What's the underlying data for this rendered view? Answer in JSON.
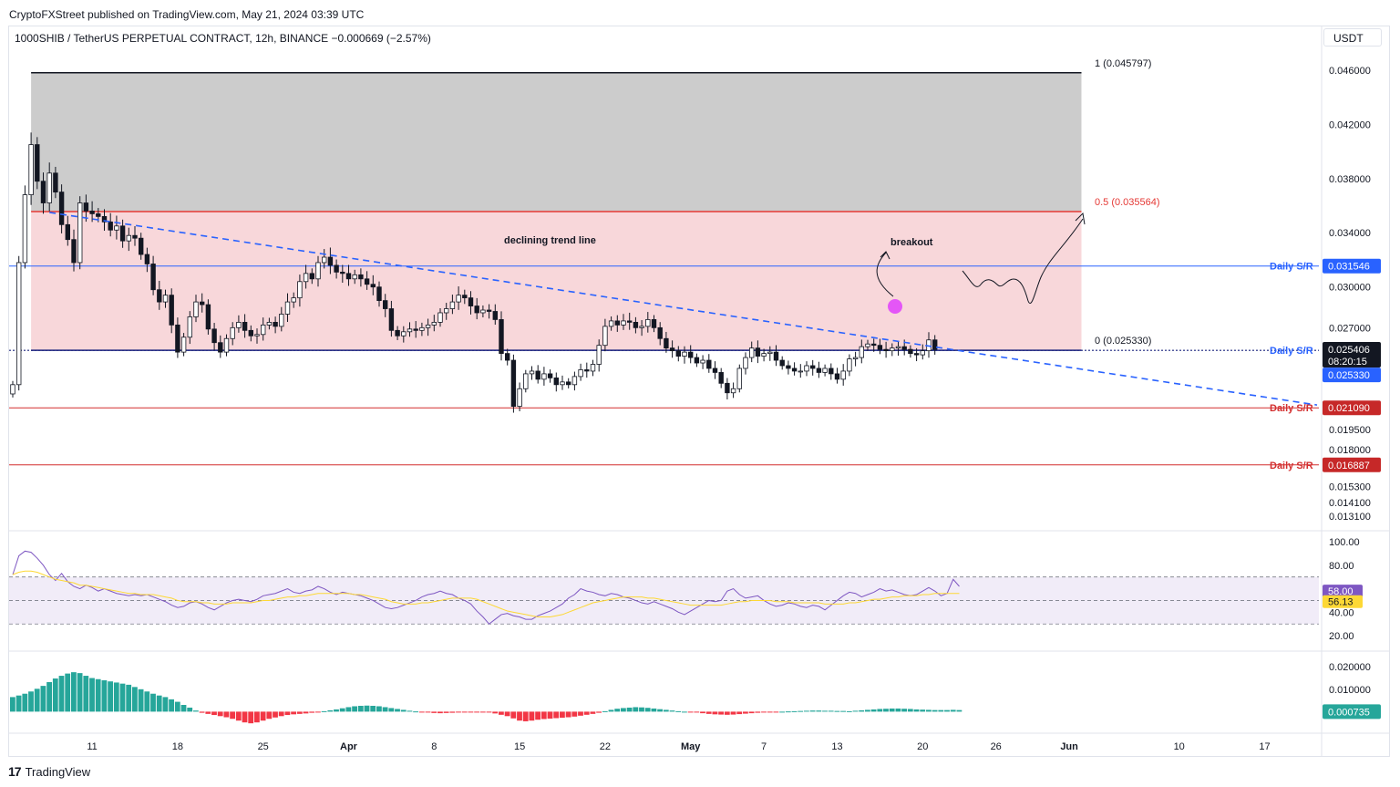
{
  "publisher": "CryptoFXStreet published on TradingView.com, May 21, 2024 03:39 UTC",
  "symbol": {
    "name": "1000SHIB / TetherUS PERPETUAL CONTRACT, 12h, BINANCE",
    "change": "−0.000669 (−2.57%)"
  },
  "currency": "USDT",
  "branding": "TradingView",
  "colors": {
    "up": "#ffffff",
    "down": "#131722",
    "fib_zone": "#f8d7da",
    "top_zone": "#cccccc",
    "trend": "#2962ff",
    "support_red": "#d32f2f",
    "rsi": "#7e57c2",
    "rsi_ma": "#fdd835",
    "macd_up": "#26a69a",
    "macd_down": "#f23645"
  },
  "chart_data": [
    {
      "type": "candlestick",
      "title": "1000SHIB / TetherUS PERPETUAL CONTRACT, 12h, BINANCE",
      "ylabel": "USDT",
      "ylim": [
        0.0125,
        0.0478
      ],
      "y_ticks": [
        "0.046000",
        "0.042000",
        "0.038000",
        "0.034000",
        "0.030000",
        "0.027000",
        "0.019500",
        "0.018000",
        "0.015300",
        "0.014100",
        "0.013100"
      ],
      "y_tick_values": [
        0.046,
        0.042,
        0.038,
        0.034,
        0.03,
        0.027,
        0.0195,
        0.018,
        0.0153,
        0.0141,
        0.0131
      ],
      "x_ticks": [
        "11",
        "18",
        "25",
        "Apr",
        "8",
        "15",
        "22",
        "May",
        "7",
        "13",
        "20",
        "26",
        "Jun",
        "10",
        "17"
      ],
      "x_tick_index": [
        13,
        27,
        41,
        55,
        69,
        83,
        97,
        111,
        123,
        135,
        149,
        161,
        173,
        191,
        205
      ],
      "closes": [
        0.0228,
        0.0318,
        0.0368,
        0.0405,
        0.0378,
        0.0362,
        0.0384,
        0.037,
        0.0346,
        0.0335,
        0.0318,
        0.0362,
        0.0356,
        0.0354,
        0.0352,
        0.0348,
        0.0342,
        0.0345,
        0.0334,
        0.0338,
        0.0336,
        0.0324,
        0.0317,
        0.0298,
        0.0289,
        0.0294,
        0.0272,
        0.0252,
        0.0263,
        0.0278,
        0.0289,
        0.0287,
        0.0269,
        0.0259,
        0.0252,
        0.0262,
        0.027,
        0.0274,
        0.0268,
        0.0264,
        0.0265,
        0.0272,
        0.0274,
        0.0271,
        0.028,
        0.0289,
        0.0292,
        0.0304,
        0.031,
        0.0306,
        0.0318,
        0.0322,
        0.0316,
        0.0311,
        0.031,
        0.0306,
        0.0309,
        0.0306,
        0.0302,
        0.03,
        0.029,
        0.0284,
        0.0268,
        0.0264,
        0.0267,
        0.0269,
        0.0268,
        0.027,
        0.0272,
        0.0274,
        0.0281,
        0.0284,
        0.0289,
        0.0294,
        0.0292,
        0.0286,
        0.0281,
        0.0283,
        0.0282,
        0.0276,
        0.0251,
        0.0246,
        0.0212,
        0.0225,
        0.0236,
        0.0238,
        0.0232,
        0.0236,
        0.0233,
        0.0228,
        0.023,
        0.0228,
        0.0234,
        0.0239,
        0.0238,
        0.0243,
        0.0257,
        0.0271,
        0.0275,
        0.0272,
        0.0275,
        0.0274,
        0.027,
        0.0271,
        0.0276,
        0.027,
        0.0262,
        0.0255,
        0.0253,
        0.0249,
        0.0252,
        0.0248,
        0.0244,
        0.0246,
        0.024,
        0.0237,
        0.0229,
        0.0222,
        0.0225,
        0.024,
        0.0248,
        0.0255,
        0.0249,
        0.0251,
        0.0252,
        0.0246,
        0.0242,
        0.024,
        0.0238,
        0.0238,
        0.0242,
        0.024,
        0.0237,
        0.024,
        0.0236,
        0.0232,
        0.0238,
        0.0247,
        0.0248,
        0.0256,
        0.0258,
        0.0257,
        0.0254,
        0.0253,
        0.0255,
        0.0256,
        0.0254,
        0.0251,
        0.025,
        0.0253,
        0.0261,
        0.0254
      ],
      "lines": [
        {
          "label": "1 (0.045797)",
          "value": 0.045797
        },
        {
          "label": "0.5 (0.035564)",
          "value": 0.035564
        },
        {
          "label": "0 (0.025330)",
          "value": 0.02533
        }
      ],
      "levels": [
        {
          "name": "Daily S/R",
          "value": 0.031546,
          "price_label": "0.031546",
          "color": "blue"
        },
        {
          "name": "Daily S/R",
          "value": 0.02533,
          "price_label": "0.025330",
          "color": "blue"
        },
        {
          "name": "Daily S/R",
          "value": 0.02109,
          "price_label": "0.021090",
          "color": "red"
        },
        {
          "name": "Daily S/R",
          "value": 0.016887,
          "price_label": "0.016887",
          "color": "red"
        }
      ],
      "last_price": "0.025406",
      "countdown": "08:20:15",
      "trend_line": {
        "label": "declining trend line",
        "from": [
          6,
          0.0355
        ],
        "to": [
          210,
          0.0213
        ]
      },
      "annotations": [
        "breakout",
        "declining trend line"
      ]
    },
    {
      "type": "line",
      "title": "RSI",
      "ylim": [
        10,
        107
      ],
      "y_ticks": [
        "100.00",
        "80.00",
        "40.00",
        "20.00"
      ],
      "y_tick_values": [
        100,
        80,
        40,
        20
      ],
      "band": [
        30,
        70
      ],
      "rsi_value": "58.00",
      "rsi_ma_value": "56.13",
      "rsi": [
        72,
        88,
        92,
        91,
        86,
        80,
        72,
        67,
        73,
        66,
        62,
        60,
        63,
        61,
        58,
        60,
        58,
        56,
        55,
        54,
        55,
        54,
        55,
        53,
        51,
        49,
        46,
        44,
        45,
        48,
        49,
        47,
        44,
        42,
        45,
        48,
        50,
        51,
        50,
        49,
        51,
        54,
        55,
        56,
        58,
        60,
        57,
        56,
        58,
        59,
        62,
        60,
        57,
        55,
        57,
        56,
        55,
        54,
        52,
        50,
        47,
        44,
        43,
        44,
        46,
        48,
        50,
        53,
        55,
        56,
        58,
        56,
        55,
        52,
        50,
        47,
        41,
        36,
        30,
        34,
        38,
        39,
        37,
        36,
        34,
        34,
        37,
        39,
        41,
        44,
        47,
        52,
        55,
        60,
        58,
        57,
        55,
        54,
        56,
        55,
        53,
        52,
        50,
        48,
        47,
        49,
        47,
        45,
        43,
        40,
        38,
        41,
        44,
        47,
        50,
        49,
        50,
        58,
        60,
        55,
        52,
        53,
        54,
        50,
        47,
        45,
        46,
        48,
        47,
        45,
        44,
        46,
        45,
        42,
        46,
        50,
        54,
        57,
        56,
        53,
        55,
        57,
        60,
        58,
        59,
        57,
        55,
        54,
        55,
        58,
        61,
        58,
        54,
        56,
        68,
        62
      ],
      "rsi_ma": [
        72,
        74,
        75,
        75,
        74,
        72,
        70,
        68,
        67,
        66,
        65,
        63,
        63,
        62,
        61,
        60,
        59,
        58,
        57,
        56,
        56,
        55,
        55,
        55,
        54,
        53,
        52,
        50,
        49,
        49,
        49,
        48,
        48,
        47,
        47,
        47,
        48,
        48,
        48,
        48,
        49,
        50,
        50,
        51,
        52,
        53,
        53,
        54,
        54,
        55,
        56,
        56,
        56,
        56,
        56,
        56,
        55,
        55,
        54,
        53,
        52,
        51,
        49,
        48,
        47,
        47,
        47,
        48,
        48,
        49,
        50,
        51,
        52,
        52,
        52,
        52,
        51,
        49,
        47,
        45,
        43,
        41,
        40,
        39,
        38,
        37,
        36,
        36,
        36,
        37,
        38,
        40,
        42,
        44,
        46,
        48,
        49,
        50,
        51,
        52,
        53,
        53,
        53,
        53,
        52,
        52,
        51,
        50,
        49,
        48,
        47,
        46,
        46,
        46,
        46,
        46,
        46,
        47,
        48,
        49,
        49,
        50,
        50,
        50,
        50,
        49,
        49,
        49,
        48,
        48,
        48,
        48,
        48,
        47,
        47,
        47,
        47,
        48,
        48,
        49,
        50,
        51,
        51,
        52,
        53,
        53,
        54,
        54,
        54,
        55,
        55,
        56,
        56,
        56,
        56,
        56
      ]
    },
    {
      "type": "bar",
      "title": "MACD histogram",
      "ylim": [
        -0.0088,
        0.0262
      ],
      "y_ticks": [
        "0.020000",
        "0.010000"
      ],
      "y_tick_values": [
        0.02,
        0.01
      ],
      "last_value": "0.000735",
      "values": [
        0.0065,
        0.0072,
        0.008,
        0.009,
        0.0102,
        0.0115,
        0.0132,
        0.0148,
        0.016,
        0.017,
        0.0176,
        0.0172,
        0.016,
        0.015,
        0.0145,
        0.014,
        0.0135,
        0.013,
        0.0125,
        0.012,
        0.011,
        0.01,
        0.009,
        0.008,
        0.0072,
        0.0065,
        0.0055,
        0.0044,
        0.003,
        0.0018,
        0.0005,
        -0.0005,
        -0.001,
        -0.0015,
        -0.002,
        -0.0025,
        -0.0032,
        -0.004,
        -0.0048,
        -0.0052,
        -0.0048,
        -0.004,
        -0.0032,
        -0.0026,
        -0.002,
        -0.0015,
        -0.0012,
        -0.001,
        -0.0008,
        -0.0005,
        -0.0002,
        0.0002,
        0.0006,
        0.001,
        0.0015,
        0.002,
        0.0024,
        0.0026,
        0.0027,
        0.0026,
        0.0024,
        0.002,
        0.0016,
        0.0012,
        0.0008,
        0.0004,
        0.0001,
        -0.0002,
        -0.0004,
        -0.0006,
        -0.0007,
        -0.0006,
        -0.0005,
        -0.0004,
        -0.0003,
        -0.0002,
        -0.0001,
        -0.0002,
        -0.0004,
        -0.0008,
        -0.0014,
        -0.002,
        -0.003,
        -0.004,
        -0.0043,
        -0.004,
        -0.0036,
        -0.0033,
        -0.0031,
        -0.0029,
        -0.0027,
        -0.0025,
        -0.0022,
        -0.0018,
        -0.0014,
        -0.001,
        -0.0005,
        0.0002,
        0.0008,
        0.0013,
        0.0016,
        0.0018,
        0.002,
        0.0019,
        0.0017,
        0.0014,
        0.0011,
        0.0008,
        0.0005,
        0.0002,
        0.0,
        -0.0002,
        -0.0004,
        -0.0007,
        -0.001,
        -0.0012,
        -0.0013,
        -0.0014,
        -0.0013,
        -0.0011,
        -0.0009,
        -0.0007,
        -0.0005,
        -0.0003,
        -0.0002,
        -0.0001,
        0.0,
        0.0001,
        0.0002,
        0.0003,
        0.0004,
        0.0005,
        0.0005,
        0.0004,
        0.0004,
        0.0003,
        0.0003,
        0.0002,
        0.0004,
        0.0006,
        0.0008,
        0.001,
        0.0012,
        0.0013,
        0.0014,
        0.0014,
        0.0013,
        0.0012,
        0.001,
        0.0009,
        0.0008,
        0.0007,
        0.0007,
        0.0007,
        0.0008,
        0.0007
      ]
    }
  ]
}
